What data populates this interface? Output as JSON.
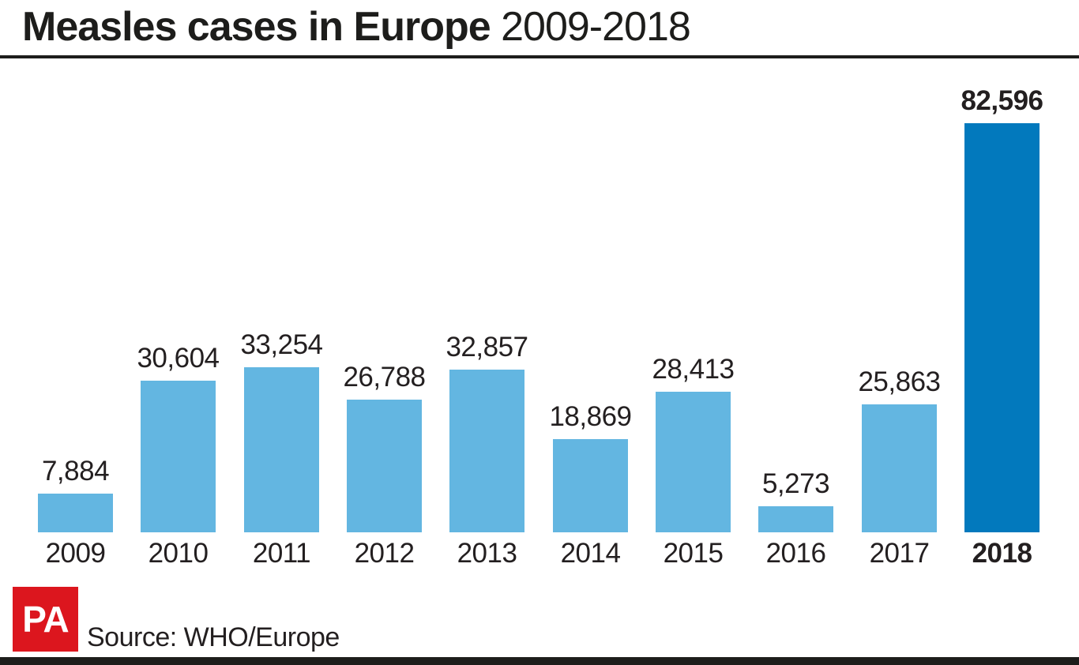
{
  "header": {
    "title_bold": "Measles cases in Europe",
    "title_years": "2009-2018"
  },
  "chart_data": {
    "type": "bar",
    "title": "Measles cases in Europe 2009-2018",
    "categories": [
      "2009",
      "2010",
      "2011",
      "2012",
      "2013",
      "2014",
      "2015",
      "2016",
      "2017",
      "2018"
    ],
    "values": [
      7884,
      30604,
      33254,
      26788,
      32857,
      18869,
      28413,
      5273,
      25863,
      82596
    ],
    "value_labels": [
      "7,884",
      "30,604",
      "33,254",
      "26,788",
      "32,857",
      "18,869",
      "28,413",
      "5,273",
      "25,863",
      "82,596"
    ],
    "highlight_index": 9,
    "ylim": [
      0,
      82596
    ],
    "grid": false,
    "legend": false,
    "xlabel": "",
    "ylabel": "",
    "colors": {
      "bar": "#63b6e1",
      "bar_highlight": "#0279bd",
      "label_text": "#231f20"
    }
  },
  "footer": {
    "logo_text": "PA",
    "logo_color": "#dc161e",
    "source": "Source: WHO/Europe"
  }
}
